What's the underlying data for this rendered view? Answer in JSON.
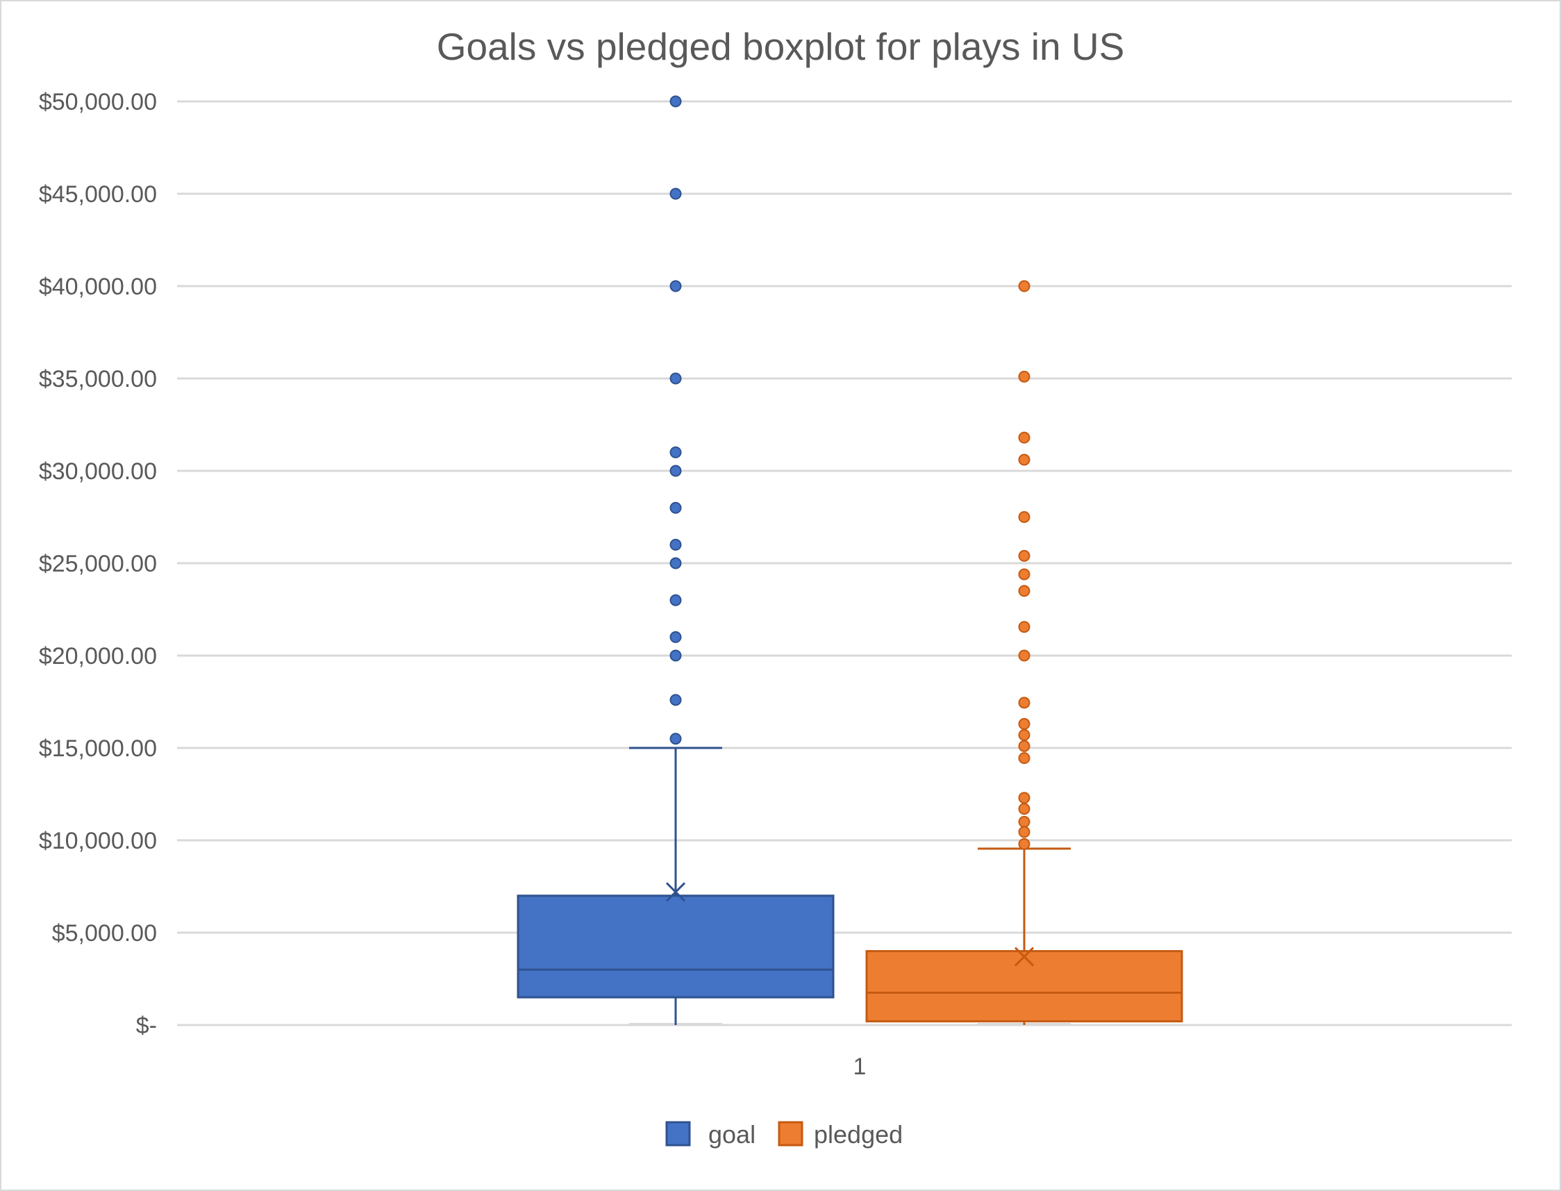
{
  "chart_data": {
    "type": "boxplot",
    "title": "Goals vs pledged boxplot for plays in US",
    "xlabel": "",
    "ylabel": "",
    "categories": [
      "1"
    ],
    "ylim": [
      0,
      50000
    ],
    "y_ticks": [
      0,
      5000,
      10000,
      15000,
      20000,
      25000,
      30000,
      35000,
      40000,
      45000,
      50000
    ],
    "y_tick_labels": [
      "$-",
      "$5,000.00",
      "$10,000.00",
      "$15,000.00",
      "$20,000.00",
      "$25,000.00",
      "$30,000.00",
      "$35,000.00",
      "$40,000.00",
      "$45,000.00",
      "$50,000.00"
    ],
    "grid": true,
    "legend_position": "bottom",
    "series": [
      {
        "name": "goal",
        "color": "#4472c4",
        "edge_color": "#2f528f",
        "whisker_low": 0,
        "q1": 1500,
        "median": 3000,
        "q3": 7000,
        "whisker_high": 15000,
        "mean": 7200,
        "outliers": [
          50000,
          45000,
          40000,
          35000,
          31000,
          30000,
          28000,
          26000,
          25000,
          23000,
          21000,
          20000,
          17600,
          15500
        ]
      },
      {
        "name": "pledged",
        "color": "#ed7d31",
        "edge_color": "#c55a11",
        "whisker_low": 0,
        "q1": 200,
        "median": 1750,
        "q3": 4000,
        "whisker_high": 9550,
        "mean": 3700,
        "outliers": [
          40000,
          35100,
          31800,
          30600,
          27500,
          25400,
          24400,
          23500,
          21550,
          20000,
          17450,
          16300,
          15700,
          15100,
          14450,
          12300,
          11700,
          11000,
          10450,
          9800
        ]
      }
    ]
  }
}
